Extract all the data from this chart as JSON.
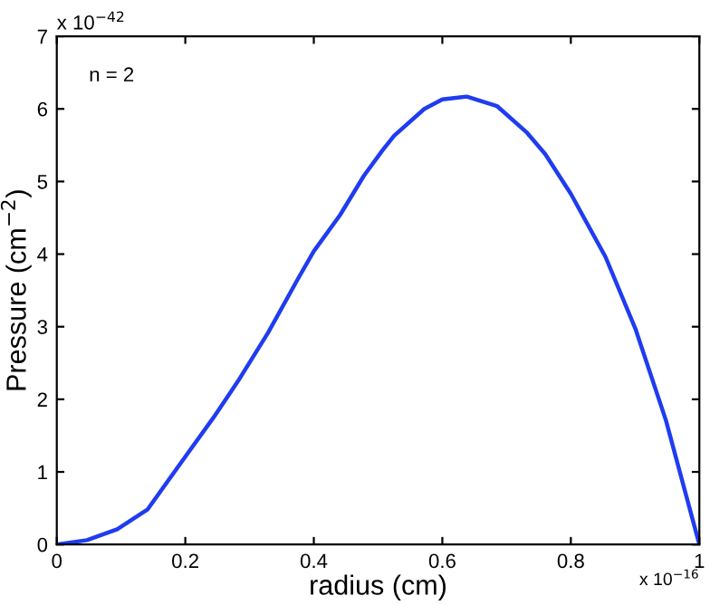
{
  "chart_data": {
    "type": "line",
    "xlabel": "radius (cm)",
    "ylabel": "Pressure (cm$^{−2}$)",
    "annotations": [
      "n = 2",
      "x 10$^{−42}$",
      "x 10$^{−16}$"
    ],
    "x": [
      0,
      0.047,
      0.094,
      0.141,
      0.2,
      0.244,
      0.282,
      0.329,
      0.376,
      0.4,
      0.441,
      0.478,
      0.507,
      0.525,
      0.572,
      0.6,
      0.638,
      0.685,
      0.732,
      0.76,
      0.8,
      0.854,
      0.901,
      0.948,
      1.0
    ],
    "series": [
      {
        "color": "#1f3cf0",
        "values": [
          0,
          0.06,
          0.21,
          0.48,
          1.21,
          1.75,
          2.25,
          2.92,
          3.67,
          4.04,
          4.54,
          5.08,
          5.43,
          5.63,
          6.0,
          6.13,
          6.17,
          6.04,
          5.67,
          5.38,
          4.83,
          3.96,
          2.96,
          1.71,
          0
        ]
      }
    ],
    "xlim": [
      0,
      1
    ],
    "xticks": [
      0,
      0.2,
      0.4,
      0.6,
      0.8,
      1
    ],
    "ylim": [
      0,
      7
    ],
    "yticks": [
      0,
      1,
      2,
      3,
      4,
      5,
      6,
      7
    ],
    "grid": false,
    "legend": false,
    "marker": "none",
    "line_style": "solid"
  }
}
